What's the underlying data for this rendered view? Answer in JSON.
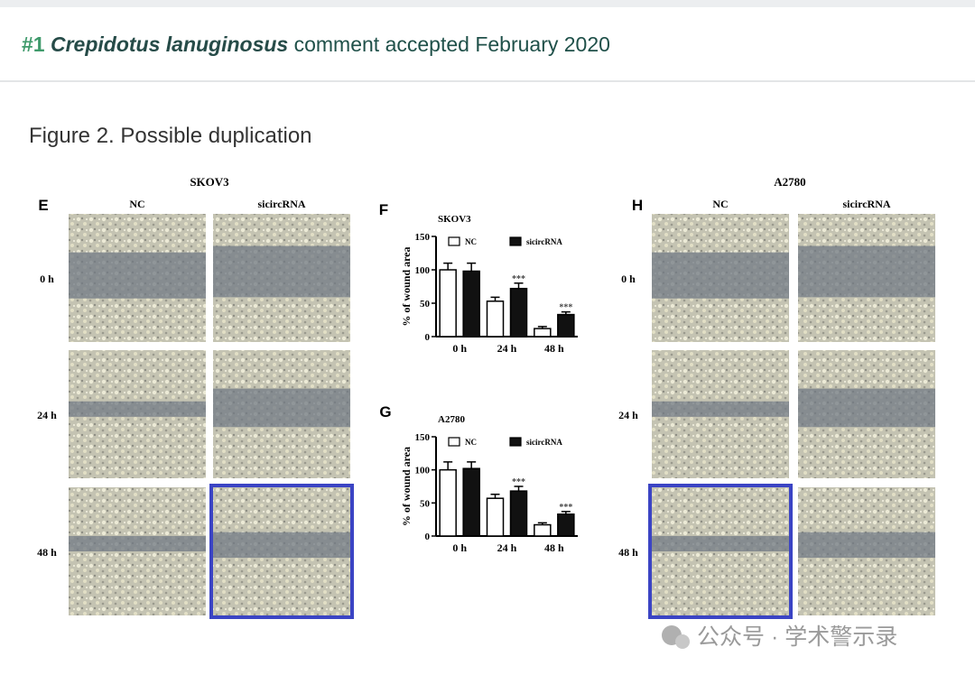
{
  "header": {
    "number": "#1",
    "title": "Crepidotus lanuginosus",
    "text": "comment accepted February 2020"
  },
  "figure": {
    "caption": "Figure 2. Possible duplication"
  },
  "panels": [
    {
      "letter": "E",
      "title": "SKOV3",
      "columns": [
        "NC",
        "sicircRNA"
      ],
      "rows": [
        "0 h",
        "24 h",
        "48 h"
      ]
    },
    {
      "letter": "H",
      "title": "A2780",
      "columns": [
        "NC",
        "sicircRNA"
      ],
      "rows": [
        "0 h",
        "24 h",
        "48 h"
      ]
    }
  ],
  "chart_data": [
    {
      "type": "bar",
      "panel_label": "F",
      "title": "SKOV3",
      "y_label": "% of wound area",
      "categories": [
        "0 h",
        "24 h",
        "48 h"
      ],
      "series": [
        {
          "name": "NC",
          "color": "#ffffff",
          "values": [
            100,
            53,
            12
          ],
          "errors": [
            10,
            6,
            3
          ],
          "significance": [
            null,
            null,
            null
          ]
        },
        {
          "name": "sicircRNA",
          "color": "#111111",
          "values": [
            98,
            72,
            33
          ],
          "errors": [
            12,
            8,
            4
          ],
          "significance": [
            null,
            "***",
            "***"
          ]
        }
      ],
      "ylim": [
        0,
        150
      ],
      "yticks": [
        0,
        50,
        100,
        150
      ]
    },
    {
      "type": "bar",
      "panel_label": "G",
      "title": "A2780",
      "y_label": "% of wound area",
      "categories": [
        "0 h",
        "24 h",
        "48 h"
      ],
      "series": [
        {
          "name": "NC",
          "color": "#ffffff",
          "values": [
            100,
            57,
            17
          ],
          "errors": [
            12,
            6,
            3
          ],
          "significance": [
            null,
            null,
            null
          ]
        },
        {
          "name": "sicircRNA",
          "color": "#111111",
          "values": [
            102,
            68,
            33
          ],
          "errors": [
            10,
            7,
            4
          ],
          "significance": [
            null,
            "***",
            "***"
          ]
        }
      ],
      "ylim": [
        0,
        150
      ],
      "yticks": [
        0,
        50,
        100,
        150
      ]
    }
  ],
  "watermark": "公众号 · 学术警示录"
}
